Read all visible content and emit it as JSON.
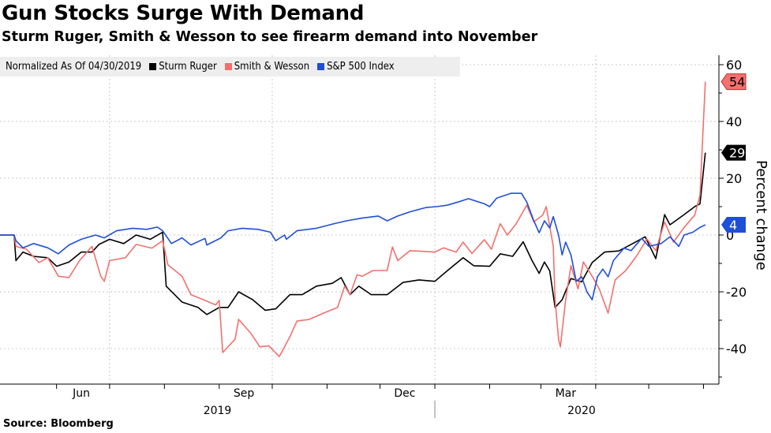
{
  "title": "Gun Stocks Surge With Demand",
  "subtitle": "Sturm Ruger, Smith & Wesson to see firearm demand into November",
  "source": "Source: Bloomberg",
  "chart_data": {
    "type": "line",
    "title": "Gun Stocks Surge With Demand",
    "subtitle": "Sturm Ruger, Smith & Wesson to see firearm demand into November",
    "legend_note": "Normalized As Of 04/30/2019",
    "ylabel": "Percent change",
    "xlabel": "",
    "ylim": [
      -52,
      62
    ],
    "xlim": [
      "2019-04-30",
      "2020-06-06"
    ],
    "yticks": [
      60,
      40,
      20,
      0,
      -20,
      -40
    ],
    "xtick_labels": [
      {
        "label": "Jun",
        "date": "2019-06-15"
      },
      {
        "label": "Sep",
        "date": "2019-09-15"
      },
      {
        "label": "Dec",
        "date": "2019-12-15"
      },
      {
        "label": "Mar",
        "date": "2020-03-15"
      }
    ],
    "year_labels": [
      {
        "label": "2019",
        "date": "2019-08-31"
      },
      {
        "label": "2020",
        "date": "2020-03-24"
      }
    ],
    "grid": true,
    "y_axis_side": "right",
    "legend_placement": "top-left",
    "series": [
      {
        "name": "Sturm Ruger",
        "color": "#000000",
        "last_value": "29",
        "points": [
          [
            "2019-04-30",
            0
          ],
          [
            "2019-05-08",
            0
          ],
          [
            "2019-05-09",
            -9
          ],
          [
            "2019-05-13",
            -6
          ],
          [
            "2019-05-19",
            -7.5
          ],
          [
            "2019-05-27",
            -8
          ],
          [
            "2019-06-01",
            -11
          ],
          [
            "2019-06-08",
            -9.5
          ],
          [
            "2019-06-15",
            -6
          ],
          [
            "2019-06-21",
            -6
          ],
          [
            "2019-06-25",
            -3.3
          ],
          [
            "2019-07-01",
            -1.5
          ],
          [
            "2019-07-09",
            -3
          ],
          [
            "2019-07-16",
            0
          ],
          [
            "2019-07-24",
            -1.5
          ],
          [
            "2019-07-31",
            1
          ],
          [
            "2019-08-02",
            -18
          ],
          [
            "2019-08-11",
            -23.6
          ],
          [
            "2019-08-20",
            -25.5
          ],
          [
            "2019-08-25",
            -28
          ],
          [
            "2019-09-01",
            -25.5
          ],
          [
            "2019-09-06",
            -25.5
          ],
          [
            "2019-09-12",
            -20
          ],
          [
            "2019-09-20",
            -22.8
          ],
          [
            "2019-09-27",
            -26.5
          ],
          [
            "2019-10-03",
            -26
          ],
          [
            "2019-10-11",
            -21
          ],
          [
            "2019-10-18",
            -21
          ],
          [
            "2019-10-26",
            -18
          ],
          [
            "2019-11-04",
            -17
          ],
          [
            "2019-11-09",
            -15
          ],
          [
            "2019-11-14",
            -21
          ],
          [
            "2019-11-19",
            -18
          ],
          [
            "2019-11-26",
            -21
          ],
          [
            "2019-12-05",
            -21
          ],
          [
            "2019-12-14",
            -16.7
          ],
          [
            "2019-12-23",
            -15.8
          ],
          [
            "2020-01-01",
            -16.3
          ],
          [
            "2020-01-08",
            -12.6
          ],
          [
            "2020-01-17",
            -8
          ],
          [
            "2020-01-23",
            -10.8
          ],
          [
            "2020-02-01",
            -11
          ],
          [
            "2020-02-07",
            -6.6
          ],
          [
            "2020-02-14",
            -7.5
          ],
          [
            "2020-02-20",
            -2.4
          ],
          [
            "2020-02-25",
            -9
          ],
          [
            "2020-02-29",
            -13.5
          ],
          [
            "2020-03-03",
            -9.5
          ],
          [
            "2020-03-06",
            -12.6
          ],
          [
            "2020-03-09",
            -25.5
          ],
          [
            "2020-03-13",
            -22.8
          ],
          [
            "2020-03-18",
            -15.3
          ],
          [
            "2020-03-24",
            -16.5
          ],
          [
            "2020-03-30",
            -9.7
          ],
          [
            "2020-04-06",
            -6
          ],
          [
            "2020-04-14",
            -5.6
          ],
          [
            "2020-04-21",
            -3.3
          ],
          [
            "2020-04-29",
            -0.6
          ],
          [
            "2020-05-05",
            -8.3
          ],
          [
            "2020-05-10",
            7.2
          ],
          [
            "2020-05-13",
            3.6
          ],
          [
            "2020-05-21",
            7.2
          ],
          [
            "2020-05-27",
            10
          ],
          [
            "2020-05-30",
            11
          ],
          [
            "2020-06-02",
            29
          ]
        ]
      },
      {
        "name": "Smith & Wesson",
        "color": "#f2706e",
        "last_value": "54",
        "points": [
          [
            "2019-04-30",
            0
          ],
          [
            "2019-05-08",
            0
          ],
          [
            "2019-05-09",
            -4
          ],
          [
            "2019-05-15",
            -5
          ],
          [
            "2019-05-22",
            -9.7
          ],
          [
            "2019-05-27",
            -8
          ],
          [
            "2019-06-02",
            -14.5
          ],
          [
            "2019-06-08",
            -15
          ],
          [
            "2019-06-14",
            -9
          ],
          [
            "2019-06-21",
            -4
          ],
          [
            "2019-06-26",
            -14.5
          ],
          [
            "2019-06-28",
            -16.3
          ],
          [
            "2019-07-01",
            -9
          ],
          [
            "2019-07-10",
            -8
          ],
          [
            "2019-07-16",
            -3.3
          ],
          [
            "2019-07-25",
            -4.6
          ],
          [
            "2019-07-31",
            -2
          ],
          [
            "2019-08-03",
            -10.5
          ],
          [
            "2019-08-11",
            -14.5
          ],
          [
            "2019-08-16",
            -21
          ],
          [
            "2019-08-24",
            -23
          ],
          [
            "2019-08-30",
            -24.6
          ],
          [
            "2019-09-01",
            -23
          ],
          [
            "2019-09-03",
            -41.4
          ],
          [
            "2019-09-10",
            -36.7
          ],
          [
            "2019-09-12",
            -29.7
          ],
          [
            "2019-09-19",
            -34.7
          ],
          [
            "2019-09-24",
            -39.4
          ],
          [
            "2019-09-29",
            -39
          ],
          [
            "2019-10-05",
            -42.8
          ],
          [
            "2019-10-11",
            -35.8
          ],
          [
            "2019-10-15",
            -30.3
          ],
          [
            "2019-10-22",
            -29.7
          ],
          [
            "2019-10-30",
            -27.5
          ],
          [
            "2019-11-07",
            -25.5
          ],
          [
            "2019-11-11",
            -18
          ],
          [
            "2019-11-14",
            -21
          ],
          [
            "2019-11-18",
            -14
          ],
          [
            "2019-11-21",
            -14.5
          ],
          [
            "2019-11-27",
            -12.5
          ],
          [
            "2019-12-05",
            -12.5
          ],
          [
            "2019-12-08",
            -4.2
          ],
          [
            "2019-12-11",
            -9
          ],
          [
            "2019-12-18",
            -5.5
          ],
          [
            "2020-01-01",
            -6
          ],
          [
            "2020-01-06",
            -4.5
          ],
          [
            "2020-01-13",
            -6
          ],
          [
            "2020-01-17",
            -2.5
          ],
          [
            "2020-01-22",
            -6.5
          ],
          [
            "2020-01-29",
            -1.6
          ],
          [
            "2020-02-02",
            -5
          ],
          [
            "2020-02-07",
            4
          ],
          [
            "2020-02-11",
            0
          ],
          [
            "2020-02-16",
            4
          ],
          [
            "2020-02-22",
            10.5
          ],
          [
            "2020-02-26",
            4.6
          ],
          [
            "2020-03-02",
            7
          ],
          [
            "2020-03-04",
            10
          ],
          [
            "2020-03-08",
            -4
          ],
          [
            "2020-03-09",
            -22.8
          ],
          [
            "2020-03-11",
            -36.7
          ],
          [
            "2020-03-12",
            -39.4
          ],
          [
            "2020-03-15",
            -22.8
          ],
          [
            "2020-03-18",
            -10.8
          ],
          [
            "2020-03-22",
            -19
          ],
          [
            "2020-03-25",
            -9.5
          ],
          [
            "2020-03-30",
            -14.5
          ],
          [
            "2020-04-03",
            -19
          ],
          [
            "2020-04-08",
            -27.5
          ],
          [
            "2020-04-12",
            -15.8
          ],
          [
            "2020-04-18",
            -12.5
          ],
          [
            "2020-04-24",
            -7.5
          ],
          [
            "2020-04-30",
            -1.4
          ],
          [
            "2020-05-05",
            -5.5
          ],
          [
            "2020-05-10",
            4.6
          ],
          [
            "2020-05-15",
            -2.5
          ],
          [
            "2020-05-21",
            2.7
          ],
          [
            "2020-05-27",
            7
          ],
          [
            "2020-05-30",
            14
          ],
          [
            "2020-06-02",
            54
          ]
        ]
      },
      {
        "name": "S&P 500 Index",
        "color": "#1f4fd6",
        "last_value": "4",
        "points": [
          [
            "2019-04-30",
            0
          ],
          [
            "2019-05-08",
            0
          ],
          [
            "2019-05-09",
            -2
          ],
          [
            "2019-05-13",
            -4.5
          ],
          [
            "2019-05-19",
            -3
          ],
          [
            "2019-05-27",
            -4.5
          ],
          [
            "2019-06-02",
            -6.6
          ],
          [
            "2019-06-08",
            -3.5
          ],
          [
            "2019-06-15",
            -1.5
          ],
          [
            "2019-06-23",
            0
          ],
          [
            "2019-06-28",
            -1
          ],
          [
            "2019-07-05",
            1.5
          ],
          [
            "2019-07-14",
            2.4
          ],
          [
            "2019-07-22",
            2
          ],
          [
            "2019-07-28",
            2.8
          ],
          [
            "2019-07-31",
            1.5
          ],
          [
            "2019-08-05",
            -3
          ],
          [
            "2019-08-11",
            -1
          ],
          [
            "2019-08-16",
            -3.5
          ],
          [
            "2019-08-24",
            -1.2
          ],
          [
            "2019-08-25",
            -3.5
          ],
          [
            "2019-09-02",
            -1
          ],
          [
            "2019-09-06",
            1.5
          ],
          [
            "2019-09-14",
            2.4
          ],
          [
            "2019-09-23",
            2
          ],
          [
            "2019-09-30",
            1
          ],
          [
            "2019-10-03",
            -2
          ],
          [
            "2019-10-08",
            0
          ],
          [
            "2019-10-09",
            -1.5
          ],
          [
            "2019-10-15",
            1.5
          ],
          [
            "2019-10-26",
            2.4
          ],
          [
            "2019-11-05",
            4
          ],
          [
            "2019-11-12",
            5
          ],
          [
            "2019-11-21",
            6
          ],
          [
            "2019-11-30",
            6.7
          ],
          [
            "2019-12-05",
            5
          ],
          [
            "2019-12-11",
            6.7
          ],
          [
            "2019-12-18",
            8.2
          ],
          [
            "2019-12-27",
            9.7
          ],
          [
            "2020-01-02",
            10
          ],
          [
            "2020-01-08",
            10.5
          ],
          [
            "2020-01-14",
            11.6
          ],
          [
            "2020-01-20",
            12.8
          ],
          [
            "2020-01-26",
            11.6
          ],
          [
            "2020-01-29",
            11
          ],
          [
            "2020-02-01",
            10
          ],
          [
            "2020-02-05",
            13
          ],
          [
            "2020-02-13",
            14.7
          ],
          [
            "2020-02-19",
            14.7
          ],
          [
            "2020-02-22",
            11.6
          ],
          [
            "2020-02-26",
            5
          ],
          [
            "2020-02-29",
            0.8
          ],
          [
            "2020-03-03",
            5
          ],
          [
            "2020-03-06",
            2.5
          ],
          [
            "2020-03-08",
            6.5
          ],
          [
            "2020-03-11",
            0
          ],
          [
            "2020-03-13",
            -7
          ],
          [
            "2020-03-15",
            -2.5
          ],
          [
            "2020-03-18",
            -7
          ],
          [
            "2020-03-21",
            -16.3
          ],
          [
            "2020-03-24",
            -14.7
          ],
          [
            "2020-03-27",
            -20
          ],
          [
            "2020-03-30",
            -22.8
          ],
          [
            "2020-04-02",
            -14.7
          ],
          [
            "2020-04-05",
            -12
          ],
          [
            "2020-04-08",
            -14.7
          ],
          [
            "2020-04-11",
            -9
          ],
          [
            "2020-04-17",
            -4.6
          ],
          [
            "2020-04-21",
            -5.5
          ],
          [
            "2020-04-27",
            -1.2
          ],
          [
            "2020-05-01",
            -4
          ],
          [
            "2020-05-08",
            -3
          ],
          [
            "2020-05-13",
            -0.6
          ],
          [
            "2020-05-18",
            -4
          ],
          [
            "2020-05-21",
            0
          ],
          [
            "2020-05-26",
            1
          ],
          [
            "2020-05-30",
            2.7
          ],
          [
            "2020-06-02",
            3.6
          ]
        ]
      }
    ]
  }
}
